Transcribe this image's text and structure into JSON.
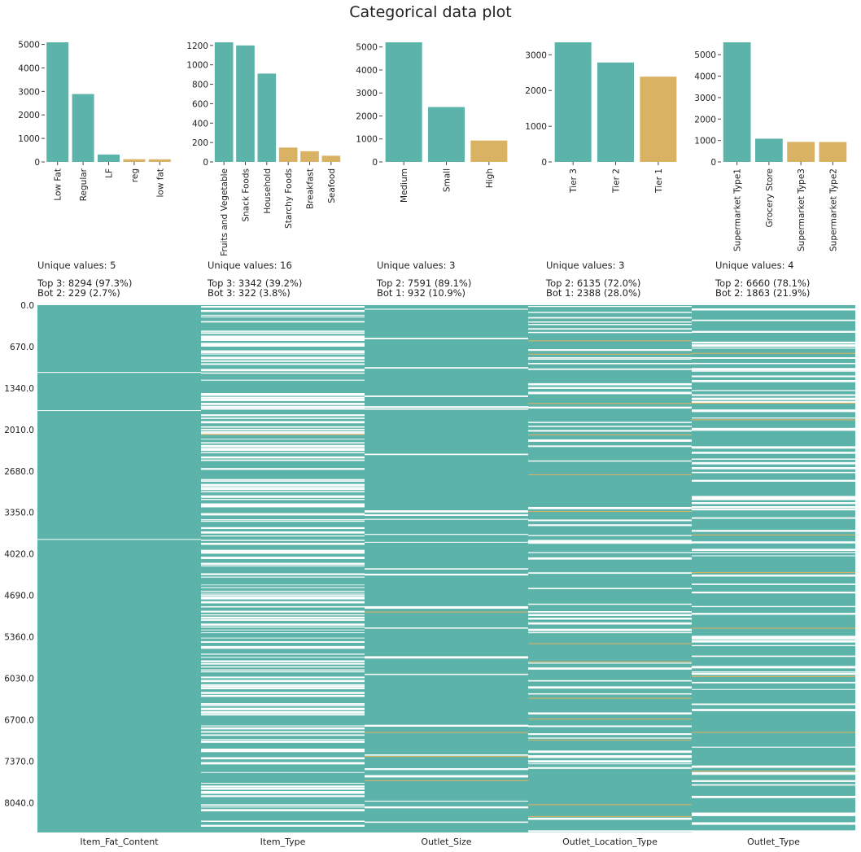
{
  "chart_data": {
    "title": "Categorical data plot",
    "type": "bar",
    "colors": {
      "top": "#5bb3a9",
      "bottom": "#d9b264",
      "heatmap_background": "#ffffff"
    },
    "subplots": [
      {
        "column": "Item_Fat_Content",
        "type": "bar",
        "categories": [
          "Low Fat",
          "Regular",
          "LF",
          "reg",
          "low fat"
        ],
        "values": [
          5089,
          2889,
          316,
          117,
          112
        ],
        "groups": [
          "top",
          "top",
          "top",
          "bottom",
          "bottom"
        ],
        "yticks": [
          0,
          1000,
          2000,
          3000,
          4000,
          5000
        ],
        "ylim": [
          0,
          5089
        ],
        "stats": [
          "Unique values: 5",
          "Top 3: 8294 (97.3%)",
          "Bot 2: 229 (2.7%)"
        ]
      },
      {
        "column": "Item_Type",
        "type": "bar",
        "categories": [
          "Fruits and Vegetable",
          "Snack Foods",
          "Household",
          "Starchy Foods",
          "Breakfast",
          "Seafood"
        ],
        "values": [
          1232,
          1200,
          910,
          148,
          110,
          64
        ],
        "groups": [
          "top",
          "top",
          "top",
          "bottom",
          "bottom",
          "bottom"
        ],
        "yticks": [
          0,
          200,
          400,
          600,
          800,
          1000,
          1200
        ],
        "ylim": [
          0,
          1232
        ],
        "stats": [
          "Unique values: 16",
          "Top 3: 3342 (39.2%)",
          "Bot 3: 322 (3.8%)"
        ]
      },
      {
        "column": "Outlet_Size",
        "type": "bar",
        "categories": [
          "Medium",
          "Small",
          "High"
        ],
        "values": [
          5203,
          2388,
          932
        ],
        "groups": [
          "top",
          "top",
          "bottom"
        ],
        "yticks": [
          0,
          1000,
          2000,
          3000,
          4000,
          5000
        ],
        "ylim": [
          0,
          5203
        ],
        "stats": [
          "Unique values: 3",
          "Top 2: 7591 (89.1%)",
          "Bot 1: 932 (10.9%)"
        ]
      },
      {
        "column": "Outlet_Location_Type",
        "type": "bar",
        "categories": [
          "Tier 3",
          "Tier 2",
          "Tier 1"
        ],
        "values": [
          3350,
          2785,
          2388
        ],
        "groups": [
          "top",
          "top",
          "bottom"
        ],
        "yticks": [
          0,
          1000,
          2000,
          3000
        ],
        "ylim": [
          0,
          3350
        ],
        "stats": [
          "Unique values: 3",
          "Top 2: 6135 (72.0%)",
          "Bot 1: 2388 (28.0%)"
        ]
      },
      {
        "column": "Outlet_Type",
        "type": "bar",
        "categories": [
          "Supermarket Type1",
          "Grocery Store",
          "Supermarket Type3",
          "Supermarket Type2"
        ],
        "values": [
          5577,
          1083,
          935,
          928
        ],
        "groups": [
          "top",
          "top",
          "bottom",
          "bottom"
        ],
        "yticks": [
          0,
          1000,
          2000,
          3000,
          4000,
          5000
        ],
        "ylim": [
          0,
          5577
        ],
        "stats": [
          "Unique values: 4",
          "Top 2: 6660 (78.1%)",
          "Bot 2: 1863 (21.9%)"
        ]
      }
    ],
    "heatmap": {
      "type": "heatmap",
      "columns": [
        "Item_Fat_Content",
        "Item_Type",
        "Outlet_Size",
        "Outlet_Location_Type",
        "Outlet_Type"
      ],
      "row_count": 8523,
      "ylim": [
        0,
        8523
      ],
      "yticks": [
        "0.0",
        "670.0",
        "1340.0",
        "2010.0",
        "2680.0",
        "3350.0",
        "4020.0",
        "4690.0",
        "5360.0",
        "6030.0",
        "6700.0",
        "7370.0",
        "8040.0"
      ],
      "legend": "none",
      "grid": false
    }
  }
}
